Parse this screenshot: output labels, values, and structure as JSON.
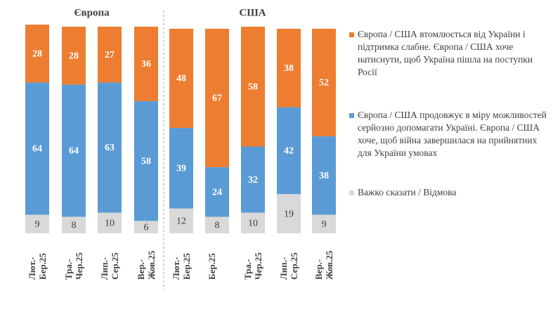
{
  "chart_data": {
    "type": "stacked_bar",
    "groups": [
      {
        "label": "Європа",
        "count": 4
      },
      {
        "label": "США",
        "count": 5
      }
    ],
    "categories": [
      "Лют.-Бер.25",
      "Тра.-Чер.25",
      "Лип.-Сер.25",
      "Вер.-Жов.25",
      "Лют.-Бер.25",
      "Бер.25",
      "Тра.-Чер.25",
      "Лип.-Сер.25",
      "Вер.-Жов.25"
    ],
    "series": [
      {
        "name": "Важко сказати / Відмова",
        "color": "#d9d9d9",
        "label_color": "#404040",
        "values": [
          9,
          8,
          10,
          6,
          12,
          8,
          10,
          19,
          9
        ]
      },
      {
        "name": "Європа / США продовжує в міру можливостей серйозно допомагати Україні. Європа / США хоче, щоб війна завершилася на прийнятних для України умовах",
        "color": "#5b9bd5",
        "label_color": "#ffffff",
        "values": [
          64,
          64,
          63,
          58,
          39,
          24,
          32,
          42,
          38
        ]
      },
      {
        "name": "Європа / США втомлюється від України і підтримка слабне. Європа / США хоче натиснути, щоб Україна пішла на поступки Росії",
        "color": "#ed7d31",
        "label_color": "#ffffff",
        "values": [
          28,
          28,
          27,
          36,
          48,
          67,
          58,
          38,
          52
        ]
      }
    ],
    "ylim": [
      0,
      100
    ]
  }
}
